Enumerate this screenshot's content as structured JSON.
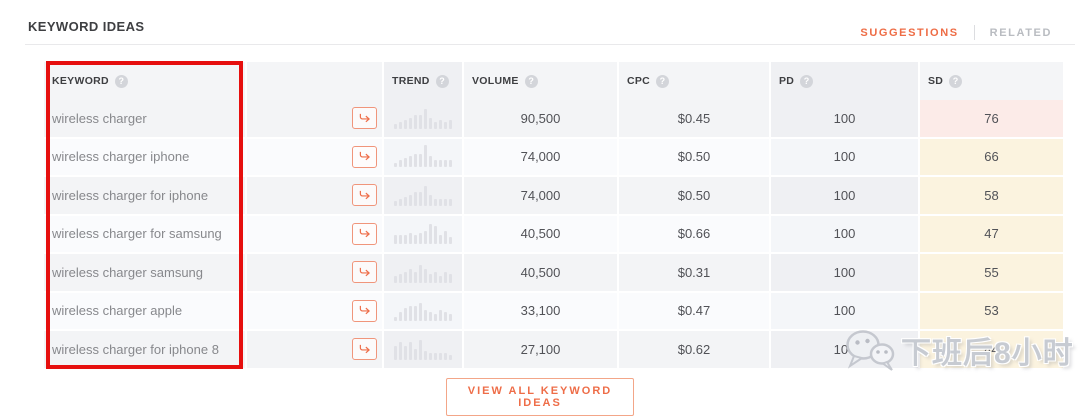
{
  "page": {
    "title": "KEYWORD IDEAS",
    "tabs": [
      {
        "label": "SUGGESTIONS",
        "active": true
      },
      {
        "label": "RELATED",
        "active": false
      }
    ],
    "view_all_button": "VIEW ALL KEYWORD IDEAS",
    "watermark_text": "下班后8小时"
  },
  "icons": {
    "help_glyph": "?"
  },
  "colors": {
    "accent": "#EE6C45",
    "annotation_red": "#E60F0E",
    "sd_pink_bg": "#FCEBE8",
    "sd_cream_bg": "#FBF3DF"
  },
  "table": {
    "columns": [
      {
        "key": "keyword",
        "label": "KEYWORD",
        "help": true
      },
      {
        "key": "action",
        "label": "",
        "help": false
      },
      {
        "key": "trend",
        "label": "TREND",
        "help": true
      },
      {
        "key": "volume",
        "label": "VOLUME",
        "help": true
      },
      {
        "key": "cpc",
        "label": "CPC",
        "help": true
      },
      {
        "key": "pd",
        "label": "PD",
        "help": true
      },
      {
        "key": "sd",
        "label": "SD",
        "help": true
      }
    ],
    "rows": [
      {
        "keyword": "wireless charger",
        "volume": "90,500",
        "cpc": "$0.45",
        "pd": "100",
        "sd": "76",
        "sd_bg": "#FCEBE8",
        "trend": [
          2,
          3,
          4,
          5,
          6,
          6,
          9,
          5,
          3,
          4,
          3,
          4
        ]
      },
      {
        "keyword": "wireless charger iphone",
        "volume": "74,000",
        "cpc": "$0.50",
        "pd": "100",
        "sd": "66",
        "sd_bg": "#FBF3DF",
        "trend": [
          2,
          3,
          4,
          5,
          6,
          6,
          10,
          5,
          3,
          3,
          3,
          3
        ]
      },
      {
        "keyword": "wireless charger for iphone",
        "volume": "74,000",
        "cpc": "$0.50",
        "pd": "100",
        "sd": "58",
        "sd_bg": "#FBF3DF",
        "trend": [
          2,
          3,
          4,
          5,
          6,
          6,
          9,
          5,
          3,
          3,
          3,
          3
        ]
      },
      {
        "keyword": "wireless charger for samsung",
        "volume": "40,500",
        "cpc": "$0.66",
        "pd": "100",
        "sd": "47",
        "sd_bg": "#FBF3DF",
        "trend": [
          4,
          4,
          4,
          5,
          4,
          5,
          6,
          9,
          8,
          4,
          6,
          3
        ]
      },
      {
        "keyword": "wireless charger samsung",
        "volume": "40,500",
        "cpc": "$0.31",
        "pd": "100",
        "sd": "55",
        "sd_bg": "#FBF3DF",
        "trend": [
          3,
          4,
          5,
          6,
          5,
          8,
          6,
          4,
          5,
          3,
          5,
          4
        ]
      },
      {
        "keyword": "wireless charger apple",
        "volume": "33,100",
        "cpc": "$0.47",
        "pd": "100",
        "sd": "53",
        "sd_bg": "#FBF3DF",
        "trend": [
          2,
          4,
          6,
          7,
          7,
          8,
          5,
          4,
          3,
          5,
          4,
          3
        ]
      },
      {
        "keyword": "wireless charger for iphone 8",
        "volume": "27,100",
        "cpc": "$0.62",
        "pd": "100",
        "sd": "44",
        "sd_bg": "#FBF3DF",
        "trend": [
          6,
          8,
          6,
          8,
          5,
          9,
          4,
          3,
          3,
          3,
          3,
          2
        ]
      }
    ]
  }
}
